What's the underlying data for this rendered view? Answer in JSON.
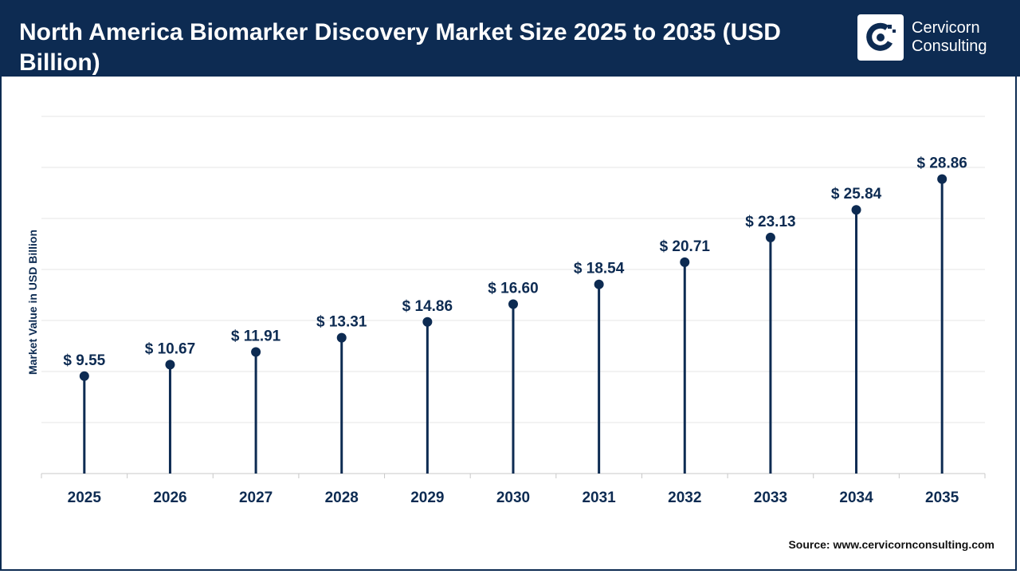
{
  "header": {
    "title": "North America Biomarker Discovery Market Size 2025 to 2035 (USD Billion)",
    "logo_line1": "Cervicorn",
    "logo_line2": "Consulting",
    "logo_icon": "cervicorn-logo-icon"
  },
  "source": "Source: www.cervicornconsulting.com",
  "colors": {
    "navy": "#0d2b52",
    "grid": "#e6e6e6"
  },
  "chart_data": {
    "type": "lollipop",
    "title": "North America Biomarker Discovery Market Size 2025 to 2035 (USD Billion)",
    "ylabel": "Market Value in USD Billion",
    "xlabel": "",
    "categories": [
      "2025",
      "2026",
      "2027",
      "2028",
      "2029",
      "2030",
      "2031",
      "2032",
      "2033",
      "2034",
      "2035"
    ],
    "values": [
      9.55,
      10.67,
      11.91,
      13.31,
      14.86,
      16.6,
      18.54,
      20.71,
      23.13,
      25.84,
      28.86
    ],
    "value_labels": [
      "$ 9.55",
      "$ 10.67",
      "$ 11.91",
      "$ 13.31",
      "$ 14.86",
      "$ 16.60",
      "$ 18.54",
      "$ 20.71",
      "$ 23.13",
      "$ 25.84",
      "$ 28.86"
    ],
    "ylim": [
      0,
      35
    ],
    "grid": true,
    "legend": "none"
  }
}
